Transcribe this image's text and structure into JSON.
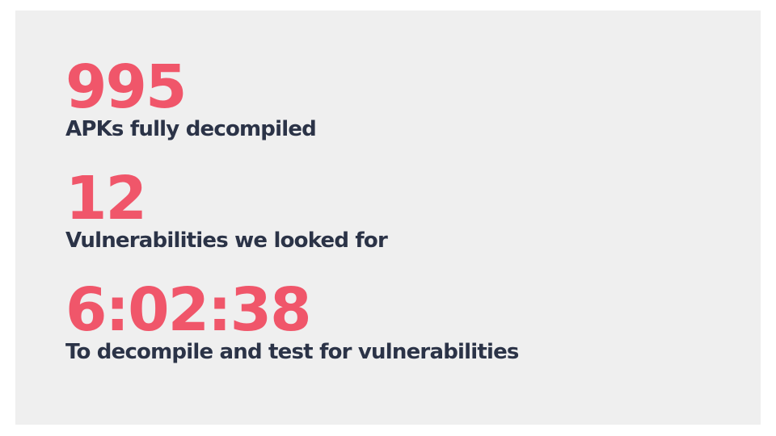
{
  "stats": [
    {
      "value": "995",
      "label": "APKs fully decompiled"
    },
    {
      "value": "12",
      "label": "Vulnerabilities we looked for"
    },
    {
      "value": "6:02:38",
      "label": "To decompile and test for vulnerabilities"
    }
  ],
  "colors": {
    "accent": "#f0566a",
    "text": "#2b3347",
    "panel_background": "#efefef",
    "page_background": "#ffffff"
  }
}
